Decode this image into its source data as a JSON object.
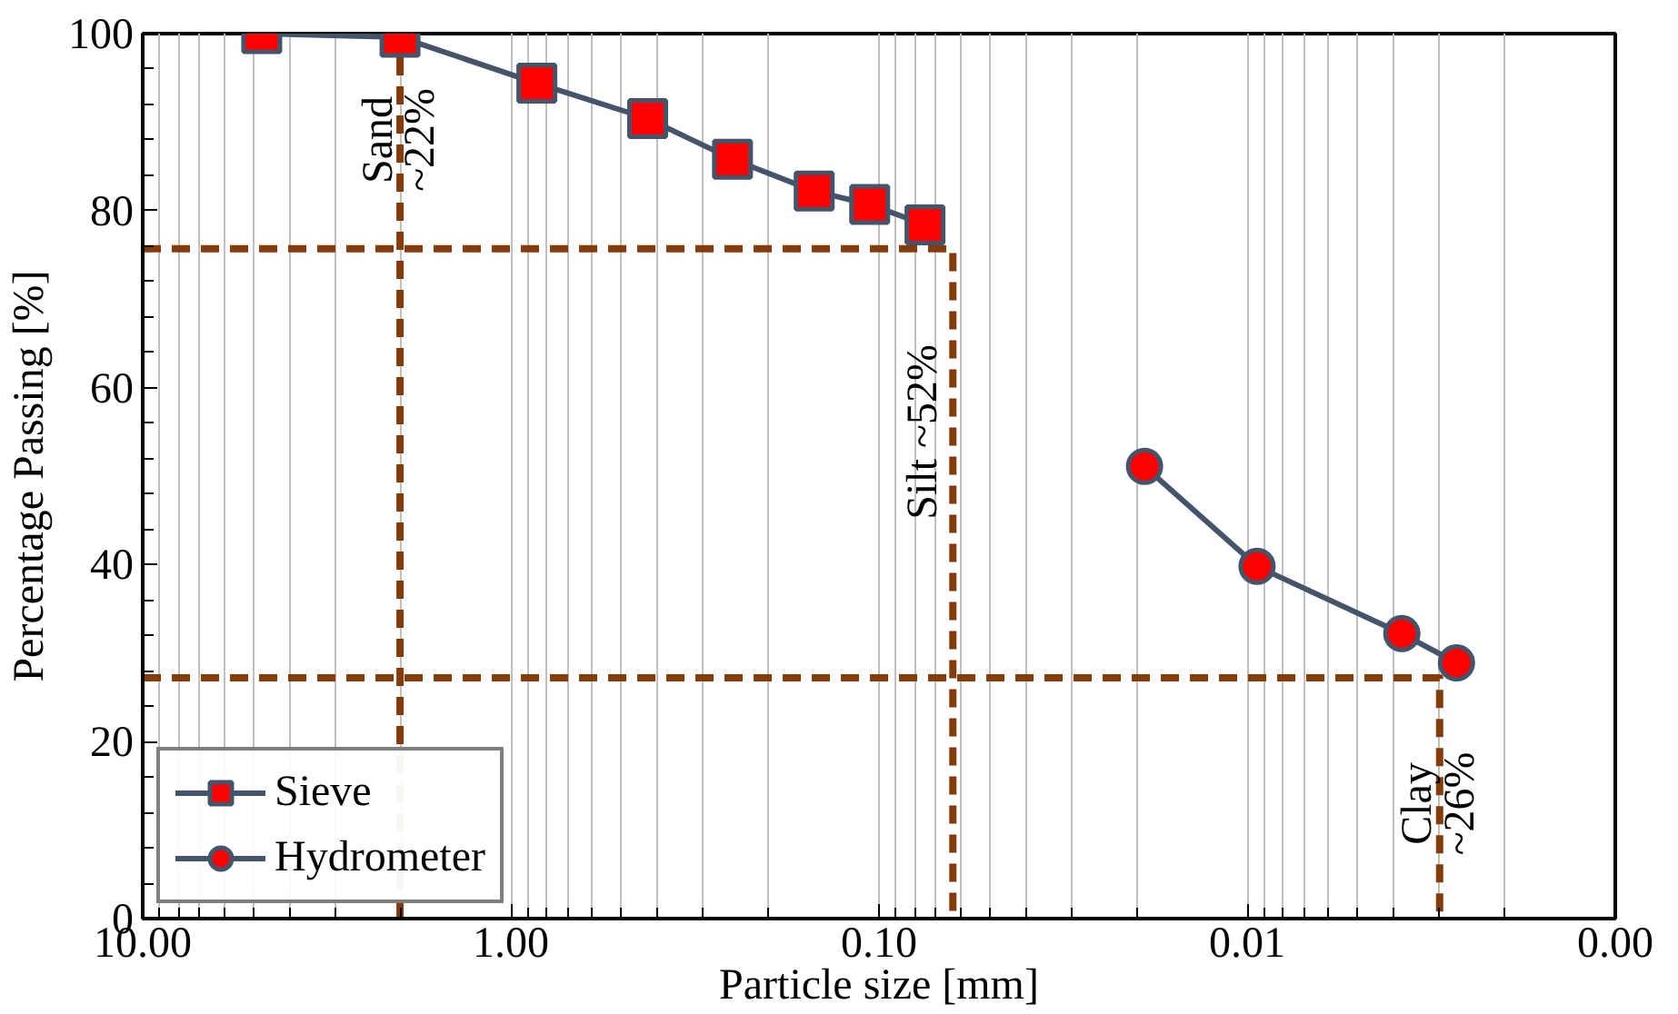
{
  "chart_data": {
    "type": "line",
    "xlabel": "Particle size [mm]",
    "ylabel": "Percentage Passing [%]",
    "log": "x",
    "xlim": [
      10,
      0.001
    ],
    "xticks": [
      {
        "value": 10,
        "label": "10.00"
      },
      {
        "value": 1,
        "label": "1.00"
      },
      {
        "value": 0.1,
        "label": "0.10"
      },
      {
        "value": 0.01,
        "label": "0.01"
      },
      {
        "value": 0.001,
        "label": "0.00"
      }
    ],
    "ylim": [
      0,
      100
    ],
    "yticks": [
      0,
      20,
      40,
      60,
      80,
      100
    ],
    "grid": "x",
    "legend": "bottom left",
    "series": [
      {
        "color": "#843c0c",
        "line_style": "dashed",
        "marker": "none",
        "x": [
          2,
          2
        ],
        "values": [
          0,
          100
        ]
      },
      {
        "color": "#843c0c",
        "line_style": "dashed",
        "marker": "none",
        "x": [
          10,
          0.063,
          0.063
        ],
        "values": [
          75.7,
          75.7,
          0
        ]
      },
      {
        "color": "#843c0c",
        "line_style": "dashed",
        "marker": "none",
        "x": [
          10,
          0.003,
          0.003
        ],
        "values": [
          27.2,
          27.2,
          0
        ]
      },
      {
        "name": "Sieve",
        "color": "#44546a",
        "marker": "square",
        "line_style": "solid",
        "x": [
          4.75,
          2,
          0.85,
          0.425,
          0.25,
          0.15,
          0.106,
          0.075
        ],
        "values": [
          100,
          99.6,
          94.4,
          90.4,
          85.8,
          82.2,
          80.7,
          78.4
        ]
      },
      {
        "name": "Hydrometer",
        "color": "#44546a",
        "marker": "circle",
        "line_style": "solid",
        "x": [
          0.019,
          0.0094,
          0.0038,
          0.0027
        ],
        "values": [
          51.1,
          39.8,
          32.2,
          28.9
        ]
      }
    ],
    "annotations": [
      {
        "text": "Sand\n~22%",
        "x": 2,
        "y": 88
      },
      {
        "text": "Silt ~52%",
        "x": 0.063,
        "y": 55
      },
      {
        "text": "Clay\n~26%",
        "x": 0.003,
        "y": 13
      }
    ]
  }
}
